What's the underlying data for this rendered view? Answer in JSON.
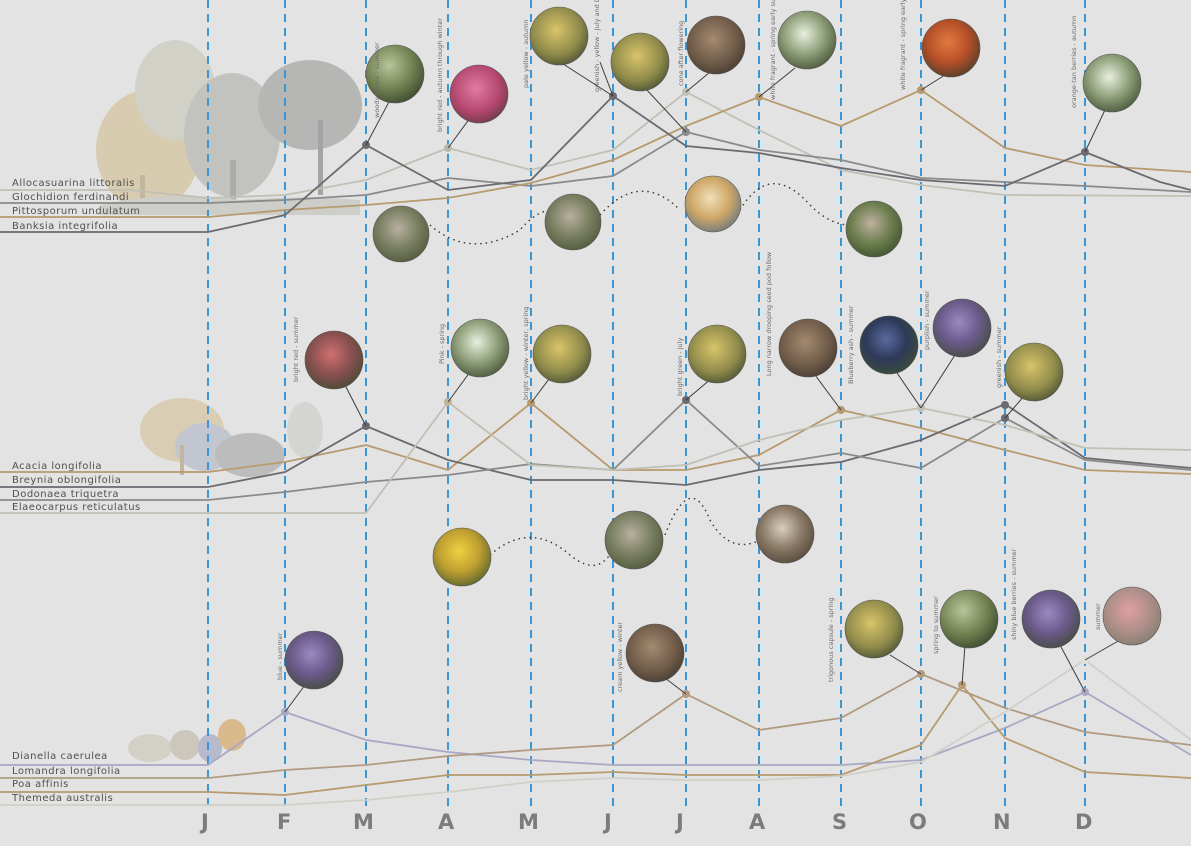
{
  "months": [
    "J",
    "F",
    "M",
    "A",
    "M",
    "J",
    "J",
    "A",
    "S",
    "O",
    "N",
    "D"
  ],
  "groups": [
    {
      "species": [
        "Allocasuarina littoralis",
        "Glochidion ferdinandi",
        "Pittosporum undulatum",
        "Banksia integrifolia"
      ],
      "annotations": [
        "woody cones - summer",
        "bright red - autumn through winter",
        "pale yellow - autumn",
        "greenish - yellow - July and December",
        "cone after flowering",
        "white fragrant - spring early summer",
        "white fragrant - spring early summer",
        "orange-tan berries - autumn"
      ]
    },
    {
      "species": [
        "Acacia longifolia",
        "Breynia oblongifolia",
        "Dodonaea triquetra",
        "Elaeocarpus reticulatus"
      ],
      "annotations": [
        "bright red - summer",
        "Pink - spring",
        "bright yellow - winter, spring",
        "bright green - july",
        "Long narrow drooping seed pod follow",
        "Blueberry ash - summer",
        "purplish - summer",
        "greenish - summer"
      ]
    },
    {
      "species": [
        "Dianella caerulea",
        "Lomandra longifolia",
        "Poa affinis",
        "Themeda australis"
      ],
      "annotations": [
        "blue - summer",
        "cream yellow - winter",
        "trigonous capsule - spring",
        "spring to summer",
        "shiny blue berries - summer",
        "summer"
      ]
    }
  ],
  "colors": {
    "background": "#e3e3e3",
    "month_guide": "#3a96d6",
    "tan": "#b79a6e",
    "grey": "#8a8a8a",
    "dark": "#6a6a70",
    "lavender": "#a8a8c4",
    "light": "#c9c9c0"
  }
}
